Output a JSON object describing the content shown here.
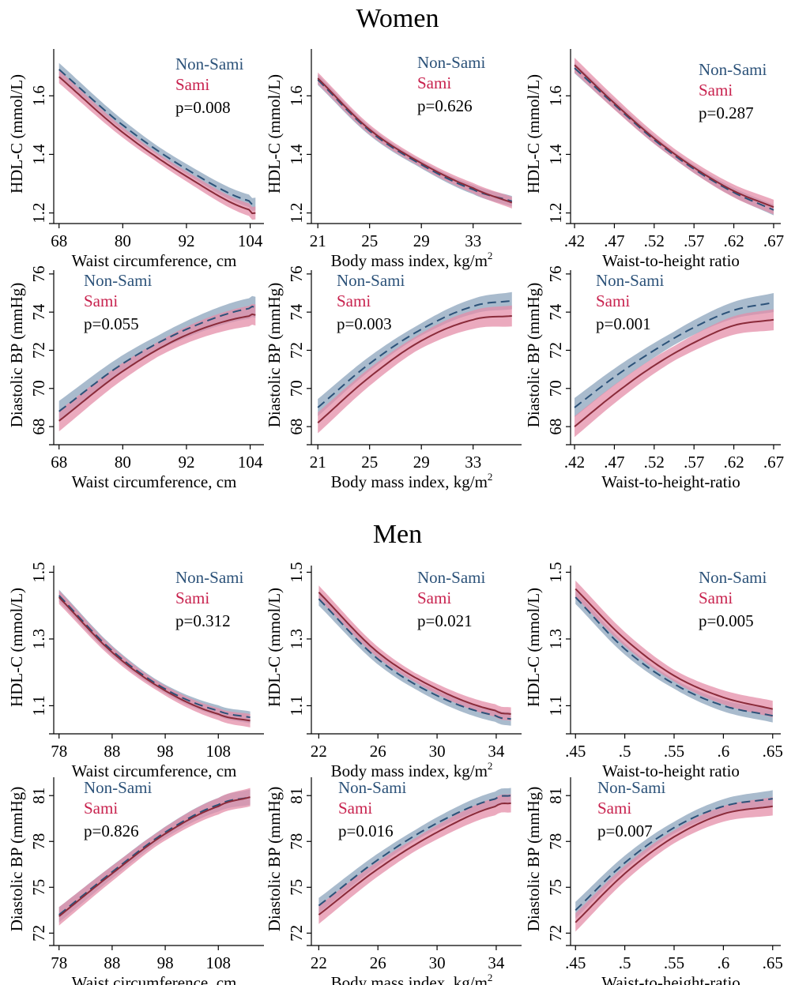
{
  "sections": [
    {
      "title": "Women"
    },
    {
      "title": "Men"
    }
  ],
  "legend": {
    "non_sami": "Non-Sami",
    "sami": "Sami",
    "non_sami_color": "#2c5279",
    "sami_color": "#c8224e",
    "non_sami_band": "#9aafc4",
    "sami_band": "#e48ea8",
    "sami_line": "#8a2b3a"
  },
  "chart_data": [
    {
      "id": "w_hdl_wc",
      "section": "Women",
      "type": "line",
      "xlabel": "Waist circumference, cm",
      "ylabel": "HDL-C (mmol/L)",
      "xlim": [
        67,
        106
      ],
      "ylim": [
        1.18,
        1.76
      ],
      "xticks": [
        68,
        80,
        92,
        104
      ],
      "xtick_labels": [
        "68",
        "80",
        "92",
        "104"
      ],
      "yticks": [
        1.2,
        1.4,
        1.6
      ],
      "ytick_labels": [
        "1.2",
        "1.4",
        "1.6"
      ],
      "p_value": "p=0.008",
      "series": [
        {
          "name": "Non-Sami",
          "x": [
            68,
            80,
            92,
            104,
            105
          ],
          "y": [
            1.69,
            1.5,
            1.35,
            1.24,
            1.23
          ],
          "band": 0.022
        },
        {
          "name": "Sami",
          "x": [
            68,
            80,
            92,
            104,
            105
          ],
          "y": [
            1.665,
            1.475,
            1.325,
            1.21,
            1.2
          ],
          "band": 0.022
        }
      ]
    },
    {
      "id": "w_hdl_bmi",
      "section": "Women",
      "type": "line",
      "xlabel": "Body mass index, kg/m",
      "xlabel_sup": "2",
      "ylabel": "HDL-C (mmol/L)",
      "xlim": [
        20.5,
        36.5
      ],
      "ylim": [
        1.18,
        1.76
      ],
      "xticks": [
        21,
        25,
        29,
        33
      ],
      "xtick_labels": [
        "21",
        "25",
        "29",
        "33"
      ],
      "yticks": [
        1.2,
        1.4,
        1.6
      ],
      "ytick_labels": [
        "1.2",
        "1.4",
        "1.6"
      ],
      "p_value": "p=0.626",
      "series": [
        {
          "name": "Non-Sami",
          "x": [
            21,
            25,
            29,
            33,
            36
          ],
          "y": [
            1.655,
            1.48,
            1.365,
            1.28,
            1.24
          ],
          "band": 0.018
        },
        {
          "name": "Sami",
          "x": [
            21,
            25,
            29,
            33,
            36
          ],
          "y": [
            1.66,
            1.485,
            1.37,
            1.285,
            1.235
          ],
          "band": 0.02
        }
      ]
    },
    {
      "id": "w_hdl_whtr",
      "section": "Women",
      "type": "line",
      "xlabel": "Waist-to-height ratio",
      "ylabel": "HDL-C (mmol/L)",
      "xlim": [
        0.415,
        0.675
      ],
      "ylim": [
        1.18,
        1.76
      ],
      "xticks": [
        0.42,
        0.47,
        0.52,
        0.57,
        0.62,
        0.67
      ],
      "xtick_labels": [
        ".42",
        ".47",
        ".52",
        ".57",
        ".62",
        ".67"
      ],
      "yticks": [
        1.2,
        1.4,
        1.6
      ],
      "ytick_labels": [
        "1.2",
        "1.4",
        "1.6"
      ],
      "p_value": "p=0.287",
      "series": [
        {
          "name": "Non-Sami",
          "x": [
            0.42,
            0.47,
            0.52,
            0.57,
            0.62,
            0.67
          ],
          "y": [
            1.695,
            1.57,
            1.45,
            1.35,
            1.27,
            1.21
          ],
          "band": 0.018
        },
        {
          "name": "Sami",
          "x": [
            0.42,
            0.47,
            0.52,
            0.57,
            0.62,
            0.67
          ],
          "y": [
            1.705,
            1.575,
            1.455,
            1.355,
            1.275,
            1.22
          ],
          "band": 0.025
        }
      ]
    },
    {
      "id": "w_dbp_wc",
      "section": "Women",
      "type": "line",
      "xlabel": "Waist circumference, cm",
      "ylabel": "Diastolic BP (mmHg)",
      "xlim": [
        67,
        106
      ],
      "ylim": [
        67.3,
        76.2
      ],
      "xticks": [
        68,
        80,
        92,
        104
      ],
      "xtick_labels": [
        "68",
        "80",
        "92",
        "104"
      ],
      "yticks": [
        68,
        70,
        72,
        74,
        76
      ],
      "ytick_labels": [
        "68",
        "70",
        "72",
        "74",
        "76"
      ],
      "p_value": "p=0.055",
      "series": [
        {
          "name": "Non-Sami",
          "x": [
            68,
            80,
            92,
            104,
            105
          ],
          "y": [
            68.8,
            71.3,
            73.1,
            74.2,
            74.25
          ],
          "band": 0.55
        },
        {
          "name": "Sami",
          "x": [
            68,
            80,
            92,
            104,
            105
          ],
          "y": [
            68.3,
            70.9,
            72.8,
            73.8,
            73.85
          ],
          "band": 0.55
        }
      ]
    },
    {
      "id": "w_dbp_bmi",
      "section": "Women",
      "type": "line",
      "xlabel": "Body mass index, kg/m",
      "xlabel_sup": "2",
      "ylabel": "Diastolic BP (mmHg)",
      "xlim": [
        20.5,
        36.5
      ],
      "ylim": [
        67.3,
        76.2
      ],
      "xticks": [
        21,
        25,
        29,
        33
      ],
      "xtick_labels": [
        "21",
        "25",
        "29",
        "33"
      ],
      "yticks": [
        68,
        70,
        72,
        74,
        76
      ],
      "ytick_labels": [
        "68",
        "70",
        "72",
        "74",
        "76"
      ],
      "p_value": "p=0.003",
      "series": [
        {
          "name": "Non-Sami",
          "x": [
            21,
            25,
            29,
            33,
            36
          ],
          "y": [
            69.0,
            71.3,
            73.1,
            74.3,
            74.6
          ],
          "band": 0.45
        },
        {
          "name": "Sami",
          "x": [
            21,
            25,
            29,
            33,
            36
          ],
          "y": [
            68.2,
            70.6,
            72.5,
            73.6,
            73.8
          ],
          "band": 0.55
        }
      ]
    },
    {
      "id": "w_dbp_whtr",
      "section": "Women",
      "type": "line",
      "xlabel": "Waist-to-height-ratio",
      "ylabel": "Diastolic BP (mmHg)",
      "xlim": [
        0.415,
        0.675
      ],
      "ylim": [
        67.3,
        76.2
      ],
      "xticks": [
        0.42,
        0.47,
        0.52,
        0.57,
        0.62,
        0.67
      ],
      "xtick_labels": [
        ".42",
        ".47",
        ".52",
        ".57",
        ".62",
        ".67"
      ],
      "yticks": [
        68,
        70,
        72,
        74,
        76
      ],
      "ytick_labels": [
        "68",
        "70",
        "72",
        "74",
        "76"
      ],
      "p_value": "p=0.001",
      "series": [
        {
          "name": "Non-Sami",
          "x": [
            0.42,
            0.47,
            0.52,
            0.57,
            0.62,
            0.67
          ],
          "y": [
            69.0,
            70.6,
            72.0,
            73.2,
            74.1,
            74.5
          ],
          "band": 0.5
        },
        {
          "name": "Sami",
          "x": [
            0.42,
            0.47,
            0.52,
            0.57,
            0.62,
            0.67
          ],
          "y": [
            68.0,
            69.7,
            71.2,
            72.4,
            73.3,
            73.6
          ],
          "band": 0.55
        }
      ]
    },
    {
      "id": "m_hdl_wc",
      "section": "Men",
      "type": "line",
      "xlabel": "Waist circumference, cm",
      "ylabel": "HDL-C (mmol/L)",
      "xlim": [
        77,
        116
      ],
      "ylim": [
        1.03,
        1.52
      ],
      "xticks": [
        78,
        88,
        98,
        108
      ],
      "xtick_labels": [
        "78",
        "88",
        "98",
        "108"
      ],
      "yticks": [
        1.1,
        1.3,
        1.5
      ],
      "ytick_labels": [
        "1.1",
        "1.3",
        "1.5"
      ],
      "p_value": "p=0.312",
      "series": [
        {
          "name": "Non-Sami",
          "x": [
            78,
            88,
            98,
            108,
            114
          ],
          "y": [
            1.43,
            1.265,
            1.15,
            1.085,
            1.065
          ],
          "band": 0.018
        },
        {
          "name": "Sami",
          "x": [
            78,
            88,
            98,
            108,
            114
          ],
          "y": [
            1.425,
            1.26,
            1.145,
            1.075,
            1.055
          ],
          "band": 0.02
        }
      ]
    },
    {
      "id": "m_hdl_bmi",
      "section": "Men",
      "type": "line",
      "xlabel": "Body mass index, kg/m",
      "xlabel_sup": "2",
      "ylabel": "HDL-C (mmol/L)",
      "xlim": [
        21.5,
        35.5
      ],
      "ylim": [
        1.03,
        1.52
      ],
      "xticks": [
        22,
        26,
        30,
        34
      ],
      "xtick_labels": [
        "22",
        "26",
        "30",
        "34"
      ],
      "yticks": [
        1.1,
        1.3,
        1.5
      ],
      "ytick_labels": [
        "1.1",
        "1.3",
        "1.5"
      ],
      "p_value": "p=0.021",
      "series": [
        {
          "name": "Non-Sami",
          "x": [
            22,
            26,
            30,
            34,
            35
          ],
          "y": [
            1.42,
            1.24,
            1.13,
            1.07,
            1.06
          ],
          "band": 0.02
        },
        {
          "name": "Sami",
          "x": [
            22,
            26,
            30,
            34,
            35
          ],
          "y": [
            1.44,
            1.26,
            1.15,
            1.085,
            1.075
          ],
          "band": 0.02
        }
      ]
    },
    {
      "id": "m_hdl_whtr",
      "section": "Men",
      "type": "line",
      "xlabel": "Waist-to-height ratio",
      "ylabel": "HDL-C (mmol/L)",
      "xlim": [
        0.445,
        0.655
      ],
      "ylim": [
        1.03,
        1.52
      ],
      "xticks": [
        0.45,
        0.5,
        0.55,
        0.6,
        0.65
      ],
      "xtick_labels": [
        ".45",
        ".5",
        ".55",
        ".6",
        ".65"
      ],
      "yticks": [
        1.1,
        1.3,
        1.5
      ],
      "ytick_labels": [
        "1.1",
        "1.3",
        "1.5"
      ],
      "p_value": "p=0.005",
      "series": [
        {
          "name": "Non-Sami",
          "x": [
            0.45,
            0.5,
            0.55,
            0.6,
            0.65
          ],
          "y": [
            1.425,
            1.27,
            1.165,
            1.1,
            1.07
          ],
          "band": 0.02
        },
        {
          "name": "Sami",
          "x": [
            0.45,
            0.5,
            0.55,
            0.6,
            0.65
          ],
          "y": [
            1.45,
            1.3,
            1.19,
            1.125,
            1.09
          ],
          "band": 0.025
        }
      ]
    },
    {
      "id": "m_dbp_wc",
      "section": "Men",
      "type": "line",
      "xlabel": "Waist circumference, cm",
      "ylabel": "Diastolic BP (mmHg)",
      "xlim": [
        77,
        116
      ],
      "ylim": [
        71.5,
        82.2
      ],
      "xticks": [
        78,
        88,
        98,
        108
      ],
      "xtick_labels": [
        "78",
        "88",
        "98",
        "108"
      ],
      "yticks": [
        72,
        75,
        78,
        81
      ],
      "ytick_labels": [
        "72",
        "75",
        "78",
        "81"
      ],
      "p_value": "p=0.826",
      "series": [
        {
          "name": "Non-Sami",
          "x": [
            78,
            88,
            98,
            108,
            114
          ],
          "y": [
            73.2,
            76.0,
            78.6,
            80.4,
            80.9
          ],
          "band": 0.5
        },
        {
          "name": "Sami",
          "x": [
            78,
            88,
            98,
            108,
            114
          ],
          "y": [
            73.1,
            75.9,
            78.5,
            80.3,
            80.9
          ],
          "band": 0.6
        }
      ]
    },
    {
      "id": "m_dbp_bmi",
      "section": "Men",
      "type": "line",
      "xlabel": "Body mass index, kg/m",
      "xlabel_sup": "2",
      "ylabel": "Diastolic BP (mmHg)",
      "xlim": [
        21.5,
        35.5
      ],
      "ylim": [
        71.5,
        82.2
      ],
      "xticks": [
        22,
        26,
        30,
        34
      ],
      "xtick_labels": [
        "22",
        "26",
        "30",
        "34"
      ],
      "yticks": [
        72,
        75,
        78,
        81
      ],
      "ytick_labels": [
        "72",
        "75",
        "78",
        "81"
      ],
      "p_value": "p=0.016",
      "series": [
        {
          "name": "Non-Sami",
          "x": [
            22,
            26,
            30,
            34,
            35
          ],
          "y": [
            73.8,
            76.8,
            79.2,
            80.8,
            81.0
          ],
          "band": 0.5
        },
        {
          "name": "Sami",
          "x": [
            22,
            26,
            30,
            34,
            35
          ],
          "y": [
            73.2,
            76.2,
            78.6,
            80.3,
            80.5
          ],
          "band": 0.6
        }
      ]
    },
    {
      "id": "m_dbp_whtr",
      "section": "Men",
      "type": "line",
      "xlabel": "Waist-to-height-ratio",
      "ylabel": "Diastolic BP (mmHg)",
      "xlim": [
        0.445,
        0.655
      ],
      "ylim": [
        71.5,
        82.2
      ],
      "xticks": [
        0.45,
        0.5,
        0.55,
        0.6,
        0.65
      ],
      "xtick_labels": [
        ".45",
        ".5",
        ".55",
        ".6",
        ".65"
      ],
      "yticks": [
        72,
        75,
        78,
        81
      ],
      "ytick_labels": [
        "72",
        "75",
        "78",
        "81"
      ],
      "p_value": "p=0.007",
      "series": [
        {
          "name": "Non-Sami",
          "x": [
            0.45,
            0.5,
            0.55,
            0.6,
            0.65
          ],
          "y": [
            73.5,
            76.6,
            78.9,
            80.3,
            80.8
          ],
          "band": 0.55
        },
        {
          "name": "Sami",
          "x": [
            0.45,
            0.5,
            0.55,
            0.6,
            0.65
          ],
          "y": [
            72.7,
            75.9,
            78.3,
            79.8,
            80.3
          ],
          "band": 0.6
        }
      ]
    }
  ]
}
